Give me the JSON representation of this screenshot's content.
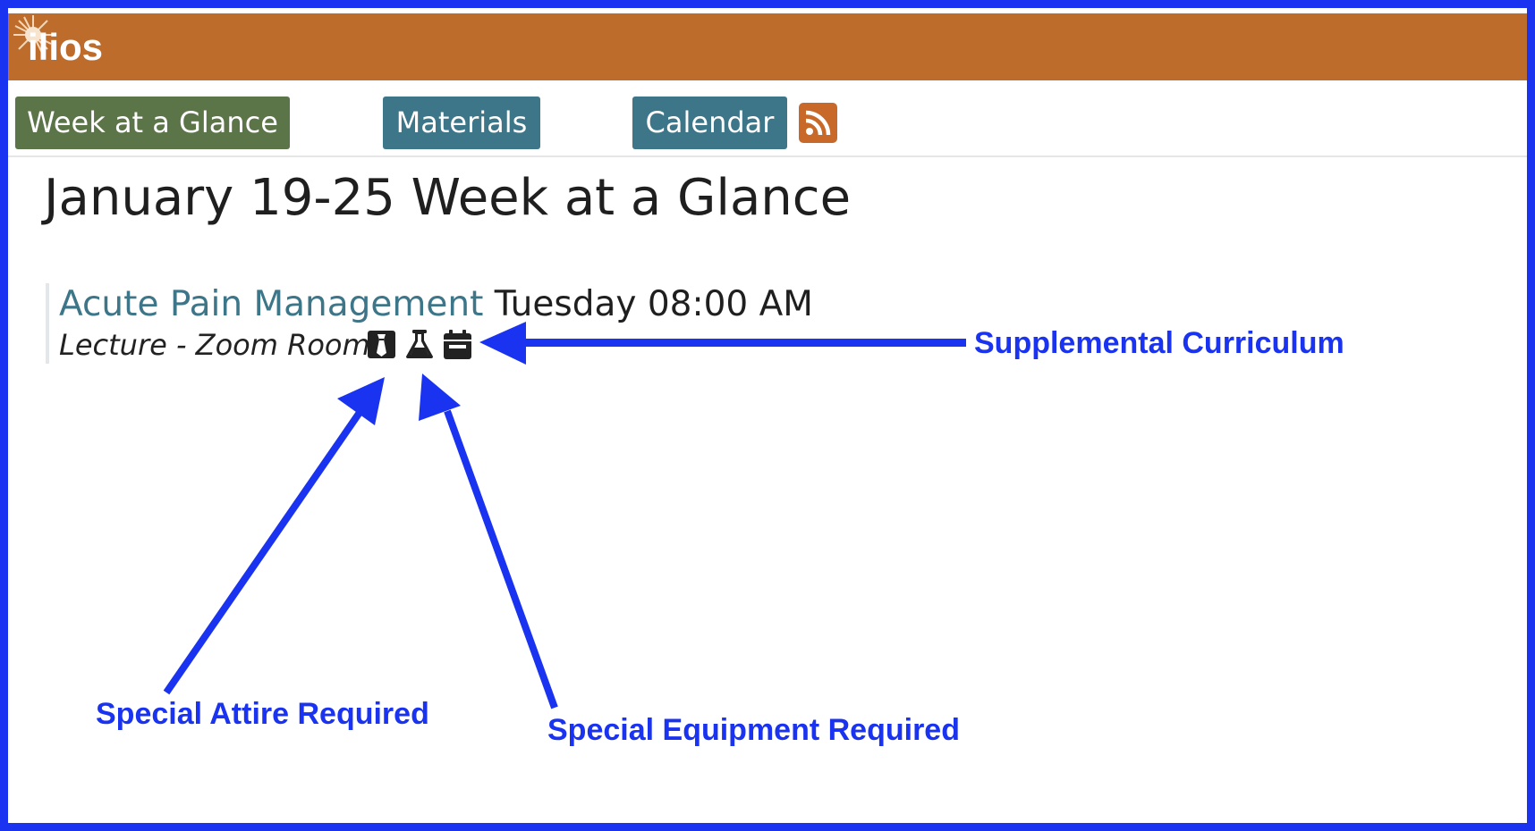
{
  "app": {
    "brand": "ilios"
  },
  "tabs": [
    {
      "label": "Week at a Glance",
      "color": "#5c7548"
    },
    {
      "label": "Materials",
      "color": "#3d7589"
    },
    {
      "label": "Calendar",
      "color": "#3d7589"
    }
  ],
  "rss": {
    "icon": "rss-icon",
    "color": "#c8692a"
  },
  "page": {
    "title": "January 19-25 Week at a Glance"
  },
  "event": {
    "title": "Acute Pain Management",
    "when": "Tuesday 08:00 AM",
    "detail": "Lecture - Zoom Room",
    "icons": [
      "tie-icon",
      "flask-icon",
      "calendar-icon"
    ]
  },
  "annotations": {
    "supplemental": "Supplemental Curriculum",
    "attire": "Special Attire Required",
    "equipment": "Special Equipment Required"
  },
  "colors": {
    "header": "#bd6c2b",
    "frame": "#1a33f0",
    "link": "#3d7589"
  }
}
